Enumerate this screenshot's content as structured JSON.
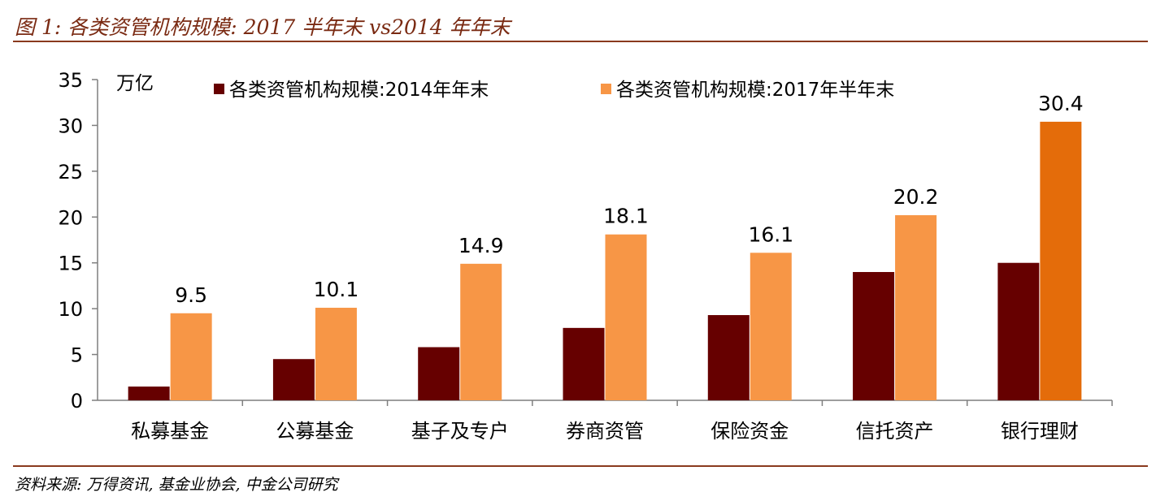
{
  "figure_title": "图 1:  各类资管机构规模:  2017 半年末 vs2014 年年末",
  "source": "资料来源:    万得资讯, 基金业协会, 中金公司研究",
  "chart_data": {
    "type": "bar",
    "unit_label": "万亿",
    "categories": [
      "私募基金",
      "公募基金",
      "基子及专户",
      "券商资管",
      "保险资金",
      "信托资产",
      "银行理财"
    ],
    "series": [
      {
        "name": "各类资管机构规模:2014年年末",
        "color": "#660000",
        "values": [
          1.5,
          4.5,
          5.8,
          7.9,
          9.3,
          14.0,
          15.0
        ]
      },
      {
        "name": "各类资管机构规模:2017年半年末",
        "color": "#f79646",
        "highlight_color": "#e46c0a",
        "values": [
          9.5,
          10.1,
          14.9,
          18.1,
          16.1,
          20.2,
          30.4
        ],
        "data_labels": [
          "9.5",
          "10.1",
          "14.9",
          "18.1",
          "16.1",
          "20.2",
          "30.4"
        ]
      }
    ],
    "ylim": [
      0,
      35
    ],
    "yticks": [
      0,
      5,
      10,
      15,
      20,
      25,
      30,
      35
    ],
    "grid": false,
    "legend_position": "top"
  }
}
